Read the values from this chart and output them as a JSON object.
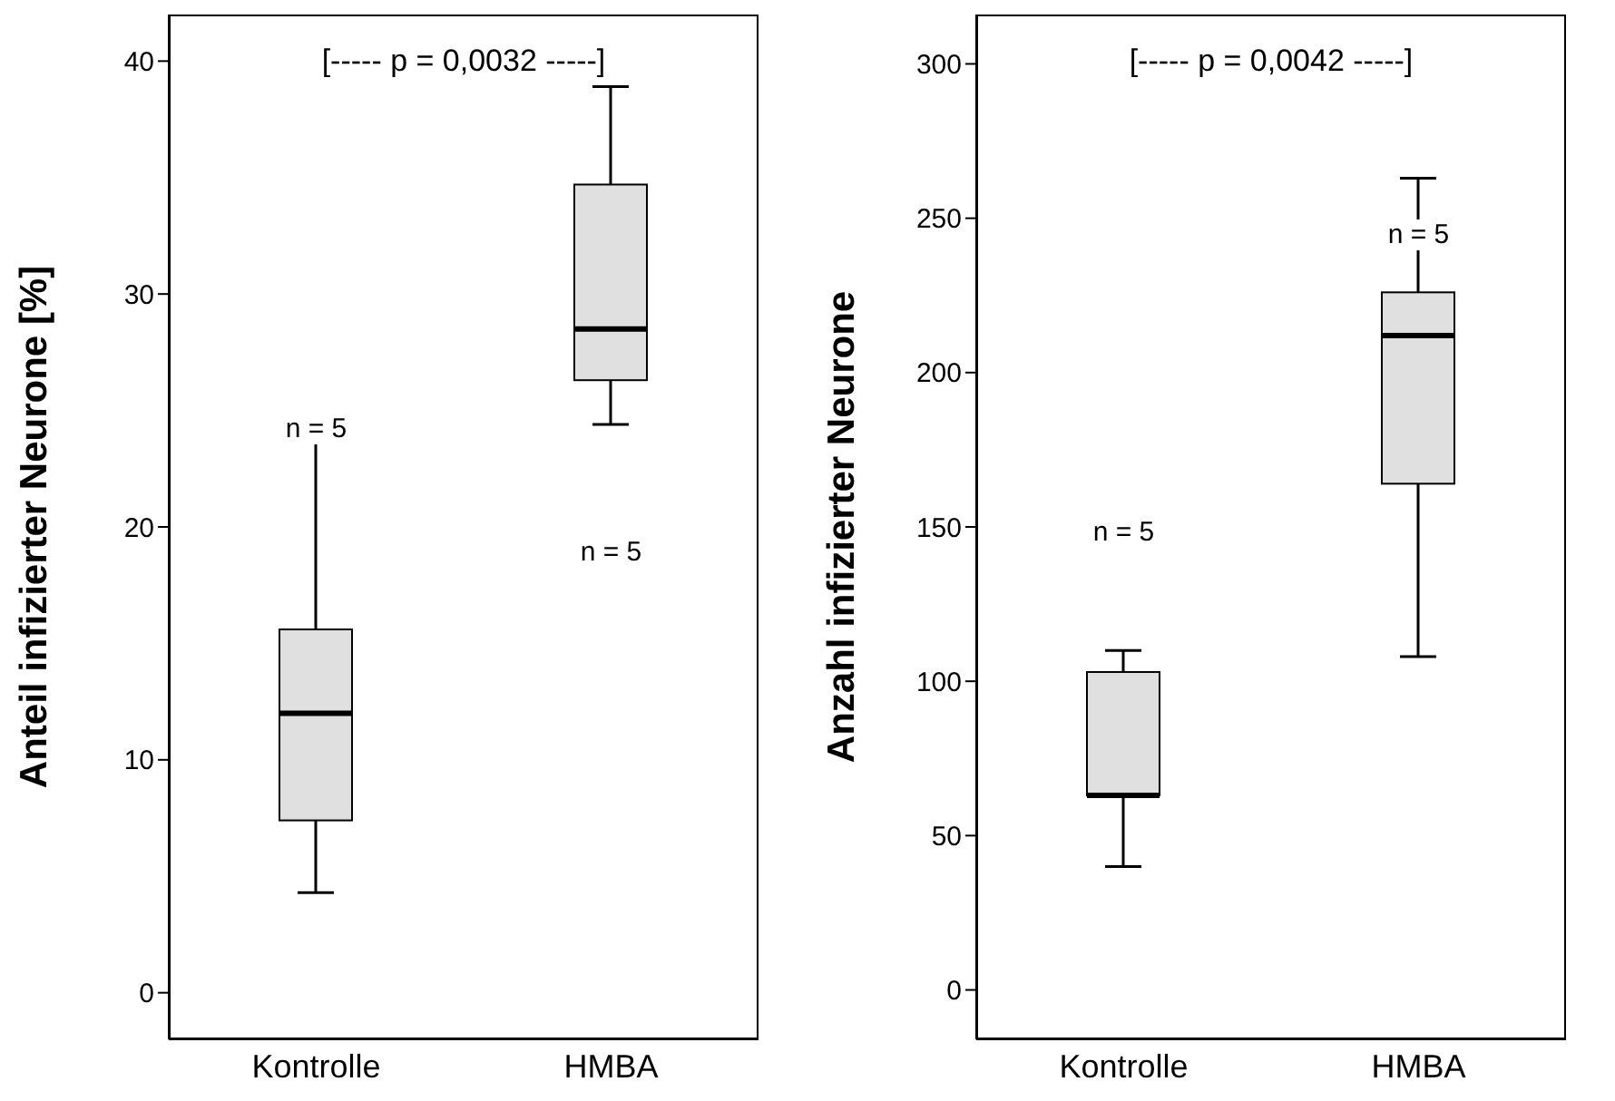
{
  "chart_data": [
    {
      "type": "box",
      "ylabel": "Anteil infizierter Neurone [%]",
      "categories": [
        "Kontrolle",
        "HMBA"
      ],
      "ylim": [
        -2,
        42
      ],
      "yticks": [
        0,
        10,
        20,
        30,
        40
      ],
      "grid": false,
      "series": [
        {
          "color": "#e0e0e0",
          "boxes": [
            {
              "low": 4.3,
              "q1": 7.4,
              "median": 12,
              "q3": 15.6,
              "high": 23.7
            },
            {
              "low": 24.4,
              "q1": 26.3,
              "median": 28.5,
              "q3": 34.7,
              "high": 38.9
            }
          ]
        }
      ],
      "annotations": [
        "[----- p = 0,0032 -----]",
        "n = 5",
        "n = 5"
      ]
    },
    {
      "type": "box",
      "ylabel": "Anzahl infizierter Neurone",
      "categories": [
        "Kontrolle",
        "HMBA"
      ],
      "ylim": [
        -16,
        316
      ],
      "yticks": [
        0,
        50,
        100,
        150,
        200,
        250,
        300
      ],
      "grid": false,
      "series": [
        {
          "color": "#e0e0e0",
          "boxes": [
            {
              "low": 40,
              "q1": 63,
              "median": 63,
              "q3": 103,
              "high": 110
            },
            {
              "low": 108,
              "q1": 164,
              "median": 212,
              "q3": 226,
              "high": 263
            }
          ]
        }
      ],
      "annotations": [
        "[----- p = 0,0042 -----]",
        "n = 5",
        "n = 5"
      ]
    }
  ]
}
